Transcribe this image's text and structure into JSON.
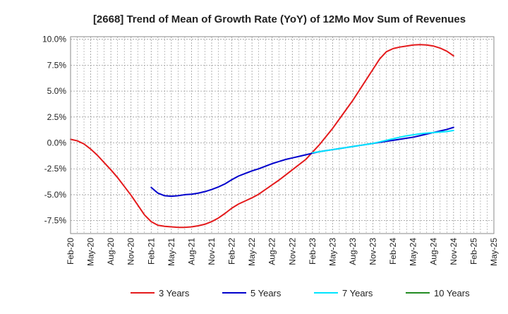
{
  "chart_data": {
    "type": "line",
    "title": "[2668]  Trend of Mean of Growth Rate (YoY) of 12Mo Mov Sum of Revenues",
    "xlabel": "",
    "ylabel": "",
    "ylim": [
      -8.75,
      10.25
    ],
    "grid": true,
    "legend_position": "bottom",
    "x_ticks": [
      "Feb-20",
      "May-20",
      "Aug-20",
      "Nov-20",
      "Feb-21",
      "May-21",
      "Aug-21",
      "Nov-21",
      "Feb-22",
      "May-22",
      "Aug-22",
      "Nov-22",
      "Feb-23",
      "May-23",
      "Aug-23",
      "Nov-23",
      "Feb-24",
      "May-24",
      "Aug-24",
      "Nov-24",
      "Feb-25",
      "May-25"
    ],
    "y_ticks": [
      10.0,
      7.5,
      5.0,
      2.5,
      0.0,
      -2.5,
      -5.0,
      -7.5
    ],
    "y_tick_labels": [
      "10.0%",
      "7.5%",
      "5.0%",
      "2.5%",
      "0.0%",
      "-2.5%",
      "-5.0%",
      "-7.5%"
    ],
    "series": [
      {
        "name": "3 Years",
        "color": "#e41a1c",
        "start_index": 0,
        "values": [
          0.35,
          0.2,
          -0.1,
          -0.6,
          -1.2,
          -1.9,
          -2.6,
          -3.35,
          -4.2,
          -5.05,
          -6.0,
          -6.95,
          -7.6,
          -7.95,
          -8.05,
          -8.1,
          -8.15,
          -8.15,
          -8.1,
          -8.0,
          -7.85,
          -7.6,
          -7.25,
          -6.8,
          -6.3,
          -5.9,
          -5.6,
          -5.3,
          -4.95,
          -4.5,
          -4.05,
          -3.6,
          -3.1,
          -2.6,
          -2.1,
          -1.6,
          -0.9,
          -0.2,
          0.6,
          1.4,
          2.3,
          3.2,
          4.1,
          5.1,
          6.1,
          7.1,
          8.1,
          8.8,
          9.1,
          9.25,
          9.35,
          9.45,
          9.48,
          9.45,
          9.35,
          9.15,
          8.85,
          8.4
        ]
      },
      {
        "name": "5 Years",
        "color": "#0000cc",
        "start_index": 12,
        "values": [
          -4.3,
          -4.85,
          -5.1,
          -5.15,
          -5.1,
          -5.0,
          -4.95,
          -4.85,
          -4.7,
          -4.5,
          -4.25,
          -3.95,
          -3.55,
          -3.2,
          -2.95,
          -2.7,
          -2.5,
          -2.25,
          -2.0,
          -1.8,
          -1.6,
          -1.45,
          -1.3,
          -1.15,
          -1.0,
          -0.85,
          -0.75,
          -0.65,
          -0.55,
          -0.45,
          -0.35,
          -0.25,
          -0.15,
          -0.05,
          0.05,
          0.15,
          0.25,
          0.35,
          0.45,
          0.55,
          0.7,
          0.85,
          1.0,
          1.15,
          1.3,
          1.5
        ]
      },
      {
        "name": "7 Years",
        "color": "#00e5ff",
        "start_index": 36,
        "values": [
          -0.95,
          -0.85,
          -0.75,
          -0.65,
          -0.55,
          -0.45,
          -0.35,
          -0.25,
          -0.15,
          -0.05,
          0.1,
          0.25,
          0.4,
          0.55,
          0.68,
          0.78,
          0.88,
          0.95,
          1.0,
          1.05,
          1.1,
          1.2
        ]
      },
      {
        "name": "10 Years",
        "color": "#228b22",
        "start_index": 0,
        "values": []
      }
    ]
  }
}
